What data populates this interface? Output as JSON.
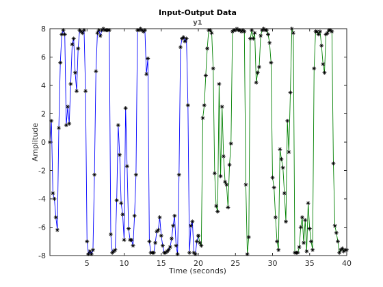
{
  "chart_data": {
    "type": "line",
    "title": "Input-Output Data",
    "subtitle": "y1",
    "xlabel": "Time (seconds)",
    "ylabel": "Amplitude",
    "xlim": [
      0,
      40
    ],
    "ylim": [
      -8,
      8
    ],
    "xticks": [
      5,
      10,
      15,
      20,
      25,
      30,
      35,
      40
    ],
    "yticks": [
      -8,
      -6,
      -4,
      -2,
      0,
      2,
      4,
      6,
      8
    ],
    "grid": false,
    "marker": "asterisk",
    "marker_color": "#000000",
    "series": [
      {
        "color": "#0000ff",
        "x": [
          0.0,
          0.2,
          0.4,
          0.6,
          0.8,
          1.0,
          1.2,
          1.4,
          1.6,
          1.8,
          2.0,
          2.2,
          2.4,
          2.6,
          2.8,
          3.0,
          3.2,
          3.4,
          3.6,
          3.8,
          4.0,
          4.2,
          4.4,
          4.6,
          4.8,
          5.0,
          5.2,
          5.4,
          5.6,
          5.8,
          6.0,
          6.2,
          6.4,
          6.6,
          6.8,
          7.0,
          7.2,
          7.4,
          7.6,
          7.8,
          8.0,
          8.2,
          8.4,
          8.6,
          8.8,
          9.0,
          9.2,
          9.4,
          9.6,
          9.8,
          10.0,
          10.2,
          10.4,
          10.6,
          10.8,
          11.0,
          11.2,
          11.4,
          11.6,
          11.8,
          12.0,
          12.2,
          12.4,
          12.6,
          12.8,
          13.0,
          13.2,
          13.4,
          13.6,
          13.8,
          14.0,
          14.2,
          14.4,
          14.6,
          14.8,
          15.0,
          15.2,
          15.4,
          15.6,
          15.8,
          16.0,
          16.2,
          16.4,
          16.6,
          16.8,
          17.0,
          17.2,
          17.4,
          17.6,
          17.8,
          18.0,
          18.2,
          18.4,
          18.6,
          18.8,
          19.0,
          19.2,
          19.4,
          19.6,
          19.8,
          20.0
        ],
        "y": [
          0.0,
          1.5,
          -3.6,
          -4.0,
          -5.3,
          -6.2,
          1.0,
          5.6,
          7.6,
          7.9,
          7.6,
          1.2,
          2.5,
          1.3,
          4.1,
          6.9,
          7.3,
          4.9,
          3.6,
          6.6,
          7.9,
          7.8,
          7.7,
          7.9,
          3.6,
          -7.0,
          -7.9,
          -7.7,
          -7.9,
          -7.6,
          -2.3,
          5.0,
          7.7,
          7.9,
          7.5,
          7.9,
          8.0,
          7.9,
          7.9,
          7.9,
          7.9,
          -6.5,
          -7.8,
          -7.7,
          -7.6,
          -4.1,
          1.2,
          -0.9,
          -4.3,
          -5.1,
          -6.9,
          2.4,
          -1.7,
          -6.1,
          -6.9,
          -6.9,
          -7.3,
          -5.2,
          -2.3,
          7.9,
          7.9,
          8.0,
          7.9,
          7.8,
          7.9,
          4.8,
          5.9,
          -7.0,
          -7.8,
          -7.8,
          -7.8,
          -7.1,
          -6.3,
          -6.2,
          -5.3,
          -6.6,
          -7.3,
          -7.8,
          -7.8,
          -7.7,
          -7.6,
          -7.4,
          -6.8,
          -5.9,
          -5.2,
          -7.3,
          -7.9,
          -2.3,
          6.7,
          7.3,
          7.4,
          7.1,
          7.3,
          2.6,
          -7.8,
          -5.9,
          -5.6,
          -7.8,
          -7.9,
          -7.0,
          -6.6
        ]
      },
      {
        "color": "#008000",
        "x": [
          20.0,
          20.2,
          20.4,
          20.6,
          20.8,
          21.0,
          21.2,
          21.4,
          21.6,
          21.8,
          22.0,
          22.2,
          22.4,
          22.6,
          22.8,
          23.0,
          23.2,
          23.4,
          23.6,
          23.8,
          24.0,
          24.2,
          24.4,
          24.6,
          24.8,
          25.0,
          25.2,
          25.4,
          25.6,
          25.8,
          26.0,
          26.2,
          26.4,
          26.6,
          26.8,
          27.0,
          27.2,
          27.4,
          27.6,
          27.8,
          28.0,
          28.2,
          28.4,
          28.6,
          28.8,
          29.0,
          29.2,
          29.4,
          29.6,
          29.8,
          30.0,
          30.2,
          30.4,
          30.6,
          30.8,
          31.0,
          31.2,
          31.4,
          31.6,
          31.8,
          32.0,
          32.2,
          32.4,
          32.6,
          32.8,
          33.0,
          33.2,
          33.4,
          33.6,
          33.8,
          34.0,
          34.2,
          34.4,
          34.6,
          34.8,
          35.0,
          35.2,
          35.4,
          35.6,
          35.8,
          36.0,
          36.2,
          36.4,
          36.6,
          36.8,
          37.0,
          37.2,
          37.4,
          37.6,
          37.8,
          38.0,
          38.2,
          38.4,
          38.6,
          38.8,
          39.0,
          39.2,
          39.4,
          39.6,
          39.8,
          40.0
        ],
        "y": [
          -6.6,
          -7.1,
          -7.3,
          1.7,
          2.6,
          4.7,
          6.6,
          7.9,
          7.9,
          7.7,
          5.2,
          -2.2,
          -4.5,
          -4.9,
          4.1,
          -2.4,
          2.5,
          -1.0,
          -2.8,
          -3.0,
          -4.6,
          -1.6,
          -0.1,
          7.8,
          7.9,
          7.9,
          8.0,
          7.9,
          7.9,
          7.8,
          7.9,
          7.8,
          -3.0,
          -7.9,
          -6.7,
          7.3,
          7.9,
          7.3,
          7.7,
          4.2,
          4.9,
          5.3,
          7.5,
          7.9,
          8.0,
          7.9,
          7.9,
          7.6,
          7.0,
          5.6,
          -2.5,
          -3.2,
          -5.3,
          -7.0,
          -7.6,
          -0.5,
          -1.2,
          -1.8,
          -3.6,
          -5.6,
          1.5,
          -0.7,
          3.5,
          8.0,
          7.7,
          -7.8,
          -7.8,
          -7.8,
          -7.4,
          -6.0,
          -5.3,
          -7.1,
          -5.5,
          -7.7,
          -4.3,
          -6.1,
          -7.0,
          -7.6,
          5.2,
          7.8,
          7.8,
          7.6,
          7.8,
          6.8,
          5.5,
          4.9,
          7.6,
          7.7,
          7.9,
          7.9,
          7.8,
          -1.5,
          -5.9,
          -6.4,
          -7.0,
          -7.8,
          -7.6,
          -7.5,
          -7.7,
          -7.6,
          -7.6
        ]
      }
    ]
  }
}
